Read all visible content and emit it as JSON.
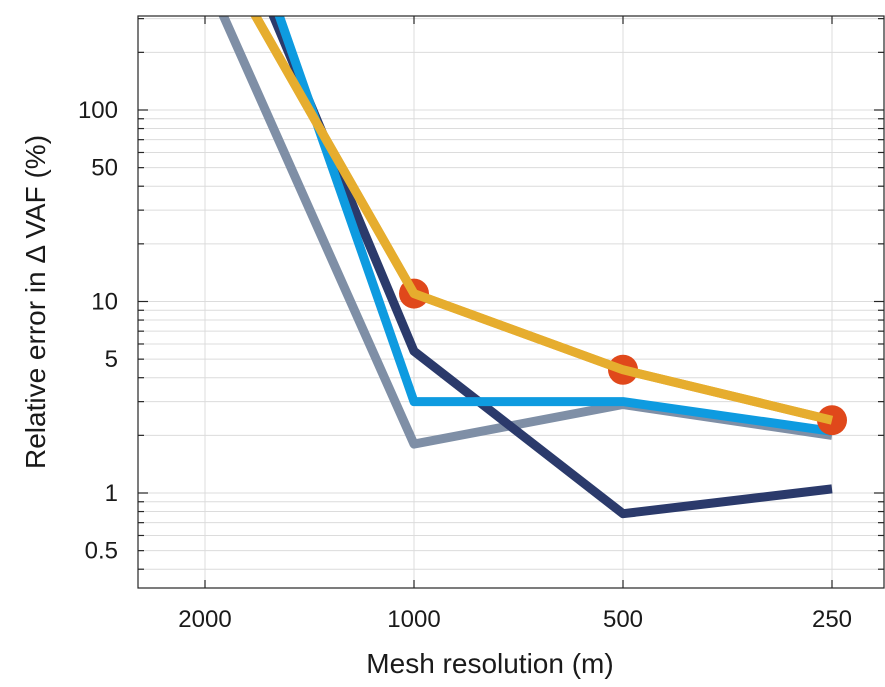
{
  "chart_data": {
    "type": "line",
    "xlabel": "Mesh resolution (m)",
    "ylabel": "Relative error in  Δ VAF (%)",
    "x_scale": "log-reversed",
    "y_scale": "log",
    "xlim": [
      2300,
      220
    ],
    "ylim": [
      0.3,
      500
    ],
    "x_ticks": [
      2000,
      1000,
      500,
      250
    ],
    "x_tick_labels": [
      "2000",
      "1000",
      "500",
      "250"
    ],
    "y_ticks": [
      0.5,
      1,
      5,
      10,
      50,
      100
    ],
    "y_tick_labels": [
      "0.5",
      "1",
      "5",
      "10",
      "50",
      "100"
    ],
    "grid": true,
    "series": [
      {
        "color": "#7f8fa6",
        "x": [
          2000,
          1000,
          500,
          250
        ],
        "y": [
          510,
          1.8,
          2.9,
          2.0
        ]
      },
      {
        "color": "#2b3a6b",
        "x": [
          2000,
          1000,
          500,
          250
        ],
        "y": [
          2200,
          5.5,
          0.78,
          1.05
        ]
      },
      {
        "color": "#0e9be0",
        "x": [
          2000,
          1000,
          500,
          250
        ],
        "y": [
          4000,
          3.0,
          3.0,
          2.1
        ]
      },
      {
        "color": "#e6ad2e",
        "x": [
          2000,
          1000,
          500,
          250
        ],
        "y": [
          900,
          11,
          4.4,
          2.4
        ],
        "markers": true,
        "marker_color": "#e0481b"
      }
    ]
  }
}
